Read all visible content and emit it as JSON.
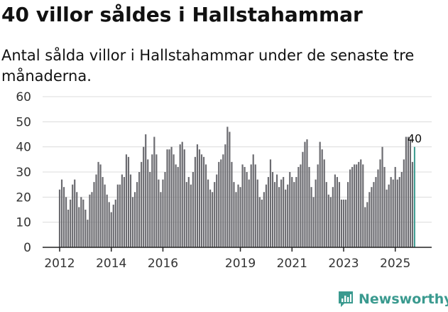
{
  "header": {
    "title": "40 villor såldes i Hallstahammar",
    "subtitle": "Antal sålda villor i Hallstahammar under de senaste tre månaderna."
  },
  "brand": {
    "name": "Newsworthy"
  },
  "colors": {
    "bar": "#6b6b70",
    "highlight": "#3a9a8f",
    "grid": "#dcdcdc",
    "axis": "#222222",
    "text": "#333333"
  },
  "chart_data": {
    "type": "bar",
    "title": "40 villor såldes i Hallstahammar",
    "xlabel": "",
    "ylabel": "",
    "ylim": [
      0,
      60
    ],
    "yticks": [
      "0",
      "10",
      "20",
      "30",
      "40",
      "50",
      "60"
    ],
    "xticks": [
      {
        "label": "2012",
        "index": 0
      },
      {
        "label": "2014",
        "index": 24
      },
      {
        "label": "2016",
        "index": 48
      },
      {
        "label": "2019",
        "index": 84
      },
      {
        "label": "2021",
        "index": 108
      },
      {
        "label": "2023",
        "index": 132
      },
      {
        "label": "2025",
        "index": 156
      }
    ],
    "highlight_label": "40",
    "values": [
      23,
      27,
      24,
      20,
      15,
      19,
      25,
      27,
      22,
      16,
      20,
      19,
      15,
      11,
      21,
      22,
      26,
      29,
      34,
      33,
      28,
      25,
      21,
      18,
      14,
      17,
      19,
      25,
      25,
      29,
      28,
      37,
      36,
      29,
      20,
      22,
      26,
      30,
      34,
      40,
      45,
      35,
      30,
      37,
      44,
      37,
      27,
      22,
      27,
      30,
      39,
      39,
      40,
      37,
      33,
      32,
      41,
      42,
      39,
      26,
      28,
      25,
      30,
      36,
      41,
      39,
      37,
      36,
      33,
      27,
      23,
      22,
      26,
      29,
      34,
      35,
      37,
      41,
      48,
      46,
      34,
      26,
      22,
      25,
      24,
      33,
      32,
      30,
      27,
      33,
      37,
      33,
      27,
      20,
      19,
      22,
      25,
      28,
      35,
      30,
      26,
      29,
      24,
      27,
      28,
      23,
      25,
      30,
      28,
      26,
      28,
      32,
      33,
      38,
      42,
      43,
      32,
      24,
      20,
      27,
      33,
      42,
      39,
      35,
      26,
      21,
      20,
      24,
      29,
      28,
      26,
      19,
      19,
      19,
      26,
      31,
      32,
      33,
      33,
      34,
      35,
      33,
      16,
      18,
      22,
      24,
      26,
      28,
      31,
      35,
      40,
      32,
      23,
      25,
      28,
      27,
      32,
      27,
      28,
      30,
      35,
      44,
      44,
      43,
      34,
      40
    ]
  }
}
